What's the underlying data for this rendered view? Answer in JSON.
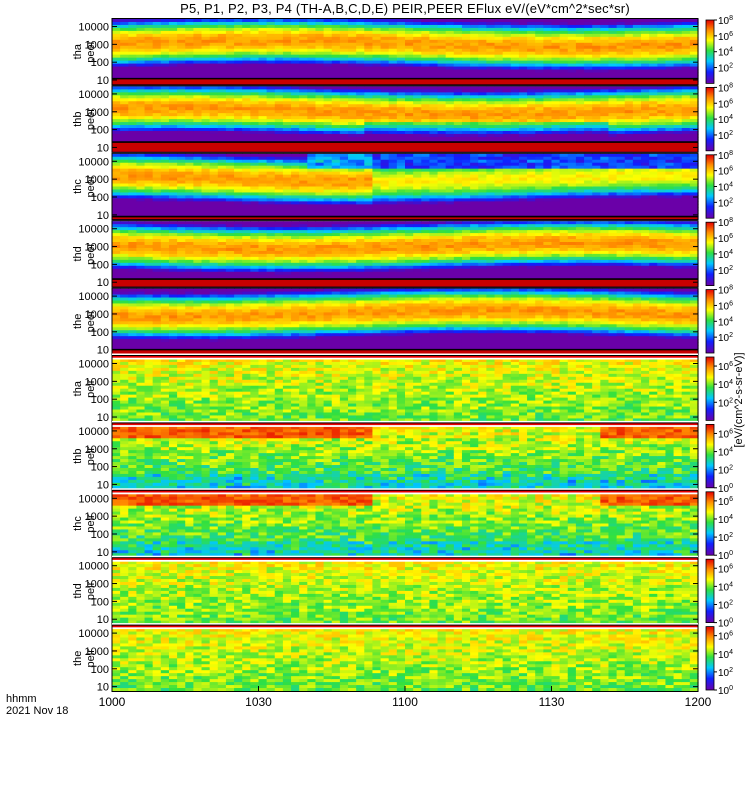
{
  "chart_data": {
    "type": "heatmap",
    "title": "P5, P1, P2, P3, P4 (TH-A,B,C,D,E) PEIR,PEER EFlux eV/(eV*cm^2*sec*sr)",
    "xlabel_row1": "hhmm",
    "xlabel_row2": "2021 Nov 18",
    "x_ticks": [
      "1000",
      "1030",
      "1100",
      "1130",
      "1200"
    ],
    "x_range": [
      "10:00",
      "12:00"
    ],
    "y_scale": "log",
    "y_range_eV": [
      5,
      30000
    ],
    "color_scale": "log, rainbow (violet-blue-cyan-green-yellow-orange-red)",
    "colorbar_label": "[eV/(cm^2-s-sr-eV)]",
    "panels": [
      {
        "id": "tha-peer",
        "label": [
          "tha",
          "peer"
        ],
        "y_ticks": [
          "10000",
          "1000",
          "100",
          "10"
        ],
        "cbar_ticks": [
          "10^8",
          "10^6",
          "10^4",
          "10^2"
        ],
        "cbar_range": [
          1,
          100000000
        ]
      },
      {
        "id": "thb-peer",
        "label": [
          "thb",
          "peer"
        ],
        "y_ticks": [
          "10000",
          "1000",
          "100",
          "10"
        ],
        "cbar_ticks": [
          "10^8",
          "10^6",
          "10^4",
          "10^2"
        ],
        "cbar_range": [
          1,
          100000000
        ]
      },
      {
        "id": "thc-peer",
        "label": [
          "thc",
          "peer"
        ],
        "y_ticks": [
          "10000",
          "1000",
          "100",
          "10"
        ],
        "cbar_ticks": [
          "10^8",
          "10^6",
          "10^4",
          "10^2"
        ],
        "cbar_range": [
          1,
          100000000
        ]
      },
      {
        "id": "thd-peer",
        "label": [
          "thd",
          "peer"
        ],
        "y_ticks": [
          "10000",
          "1000",
          "100",
          "10"
        ],
        "cbar_ticks": [
          "10^8",
          "10^6",
          "10^4",
          "10^2"
        ],
        "cbar_range": [
          1,
          100000000
        ]
      },
      {
        "id": "the-peer",
        "label": [
          "the",
          "peer"
        ],
        "y_ticks": [
          "10000",
          "1000",
          "100",
          "10"
        ],
        "cbar_ticks": [
          "10^8",
          "10^6",
          "10^4",
          "10^2"
        ],
        "cbar_range": [
          1,
          100000000
        ]
      },
      {
        "id": "tha-peir",
        "label": [
          "tha",
          "peir"
        ],
        "y_ticks": [
          "10000",
          "1000",
          "100",
          "10"
        ],
        "cbar_ticks": [
          "10^6",
          "10^4",
          "10^2"
        ],
        "cbar_range": [
          1,
          10000000
        ]
      },
      {
        "id": "thb-peir",
        "label": [
          "thb",
          "peir"
        ],
        "y_ticks": [
          "10000",
          "1000",
          "100",
          "10"
        ],
        "cbar_ticks": [
          "10^6",
          "10^4",
          "10^2",
          "10^0"
        ],
        "cbar_range": [
          1,
          10000000
        ]
      },
      {
        "id": "thc-peir",
        "label": [
          "thc",
          "peir"
        ],
        "y_ticks": [
          "10000",
          "1000",
          "100",
          "10"
        ],
        "cbar_ticks": [
          "10^6",
          "10^4",
          "10^2",
          "10^0"
        ],
        "cbar_range": [
          1,
          10000000
        ]
      },
      {
        "id": "thd-peir",
        "label": [
          "thd",
          "peir"
        ],
        "y_ticks": [
          "10000",
          "1000",
          "100",
          "10"
        ],
        "cbar_ticks": [
          "10^6",
          "10^4",
          "10^2",
          "10^0"
        ],
        "cbar_range": [
          1,
          10000000
        ]
      },
      {
        "id": "the-peir",
        "label": [
          "the",
          "peir"
        ],
        "y_ticks": [
          "10000",
          "1000",
          "100",
          "10"
        ],
        "cbar_ticks": [
          "10^6",
          "10^4",
          "10^2",
          "10^0"
        ],
        "cbar_range": [
          1,
          10000000
        ]
      }
    ]
  }
}
